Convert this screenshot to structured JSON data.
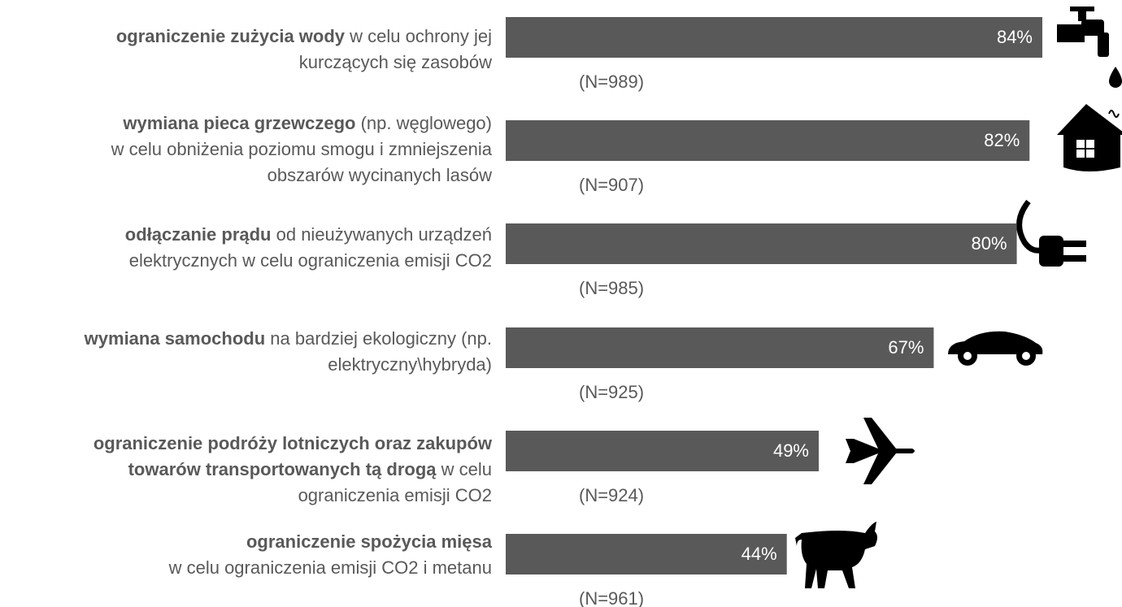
{
  "chart_data": {
    "type": "hbar",
    "color": "#595959",
    "label_color": "#ffffff",
    "text_color": "#595959",
    "categories": [
      [
        [
          {
            "text": "ograniczenie zużycia wody",
            "bold": true
          },
          {
            "text": " w celu ochrony jej",
            "bold": false
          }
        ],
        [
          {
            "text": "kurczących się zasobów",
            "bold": false
          }
        ]
      ],
      [
        [
          {
            "text": "wymiana pieca grzewczego",
            "bold": true
          },
          {
            "text": " (np. węglowego)",
            "bold": false
          }
        ],
        [
          {
            "text": "w celu obniżenia poziomu smogu i zmniejszenia",
            "bold": false
          }
        ],
        [
          {
            "text": "obszarów wycinanych lasów",
            "bold": false
          }
        ]
      ],
      [
        [
          {
            "text": "odłączanie prądu",
            "bold": true
          },
          {
            "text": " od nieużywanych urządzeń",
            "bold": false
          }
        ],
        [
          {
            "text": "elektrycznych w celu ograniczenia emisji CO2",
            "bold": false
          }
        ]
      ],
      [
        [
          {
            "text": "wymiana samochodu",
            "bold": true
          },
          {
            "text": " na bardziej ekologiczny (np.",
            "bold": false
          }
        ],
        [
          {
            "text": "elektryczny\\hybryda)",
            "bold": false
          }
        ]
      ],
      [
        [
          {
            "text": "ograniczenie podróży lotniczych oraz zakupów",
            "bold": true
          }
        ],
        [
          {
            "text": "towarów transportowanych tą drogą",
            "bold": true
          },
          {
            "text": " w celu",
            "bold": false
          }
        ],
        [
          {
            "text": "ograniczenia emisji CO2",
            "bold": false
          }
        ]
      ],
      [
        [
          {
            "text": "ograniczenie spożycia mięsa",
            "bold": true
          }
        ],
        [
          {
            "text": "w celu ograniczenia emisji CO2 i metanu",
            "bold": false
          }
        ]
      ]
    ],
    "values": [
      84,
      82,
      80,
      67,
      49,
      44
    ],
    "value_labels": [
      "84%",
      "82%",
      "80%",
      "67%",
      "49%",
      "44%"
    ],
    "n_labels": [
      "(N=989)",
      "(N=907)",
      "(N=985)",
      "(N=925)",
      "(N=924)",
      "(N=961)"
    ]
  }
}
